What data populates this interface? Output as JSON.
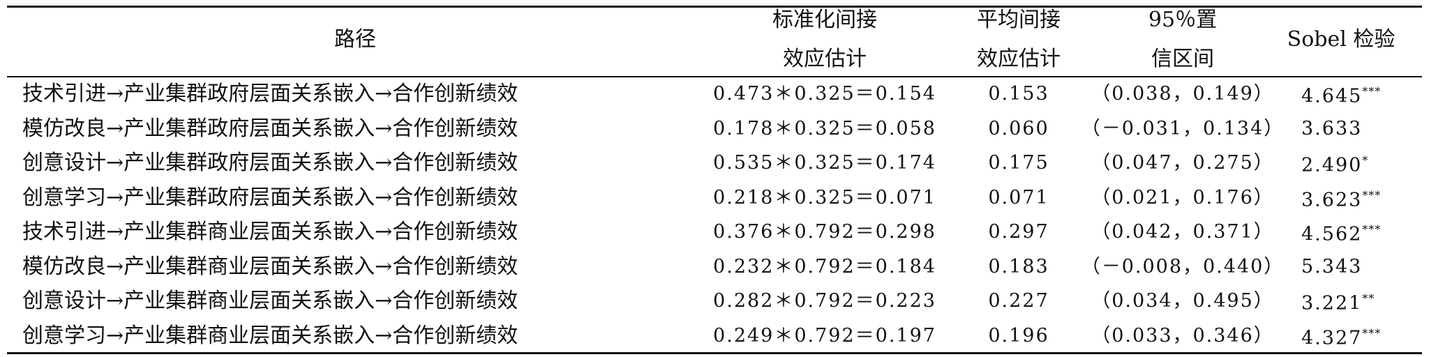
{
  "table": {
    "header": [
      [
        "路径"
      ],
      [
        "标准化间接",
        "效应估计"
      ],
      [
        "平均间接",
        "效应估计"
      ],
      [
        "95％置",
        "信区间"
      ],
      [
        "Sobel 检验"
      ]
    ],
    "rows": [
      [
        "技术引进→产业集群政府层面关系嵌入→合作创新绩效",
        "0.473＊0.325＝0.154",
        "0.153",
        "（0.038，0.149）",
        "4.645",
        "***"
      ],
      [
        "模仿改良→产业集群政府层面关系嵌入→合作创新绩效",
        "0.178＊0.325＝0.058",
        "0.060",
        "（－0.031，0.134）",
        "3.633",
        null
      ],
      [
        "创意设计→产业集群政府层面关系嵌入→合作创新绩效",
        "0.535＊0.325＝0.174",
        "0.175",
        "（0.047，0.275）",
        "2.490",
        "*"
      ],
      [
        "创意学习→产业集群政府层面关系嵌入→合作创新绩效",
        "0.218＊0.325＝0.071",
        "0.071",
        "（0.021，0.176）",
        "3.623",
        "***"
      ],
      [
        "技术引进→产业集群商业层面关系嵌入→合作创新绩效",
        "0.376＊0.792＝0.298",
        "0.297",
        "（0.042，0.371）",
        "4.562",
        "***"
      ],
      [
        "模仿改良→产业集群商业层面关系嵌入→合作创新绩效",
        "0.232＊0.792＝0.184",
        "0.183",
        "（－0.008，0.440）",
        "5.343",
        null
      ],
      [
        "创意设计→产业集群商业层面关系嵌入→合作创新绩效",
        "0.282＊0.792＝0.223",
        "0.227",
        "（0.034，0.495）",
        "3.221",
        "**"
      ],
      [
        "创意学习→产业集群商业层面关系嵌入→合作创新绩效",
        "0.249＊0.792＝0.197",
        "0.196",
        "（0.033，0.346）",
        "4.327",
        "***"
      ]
    ]
  }
}
